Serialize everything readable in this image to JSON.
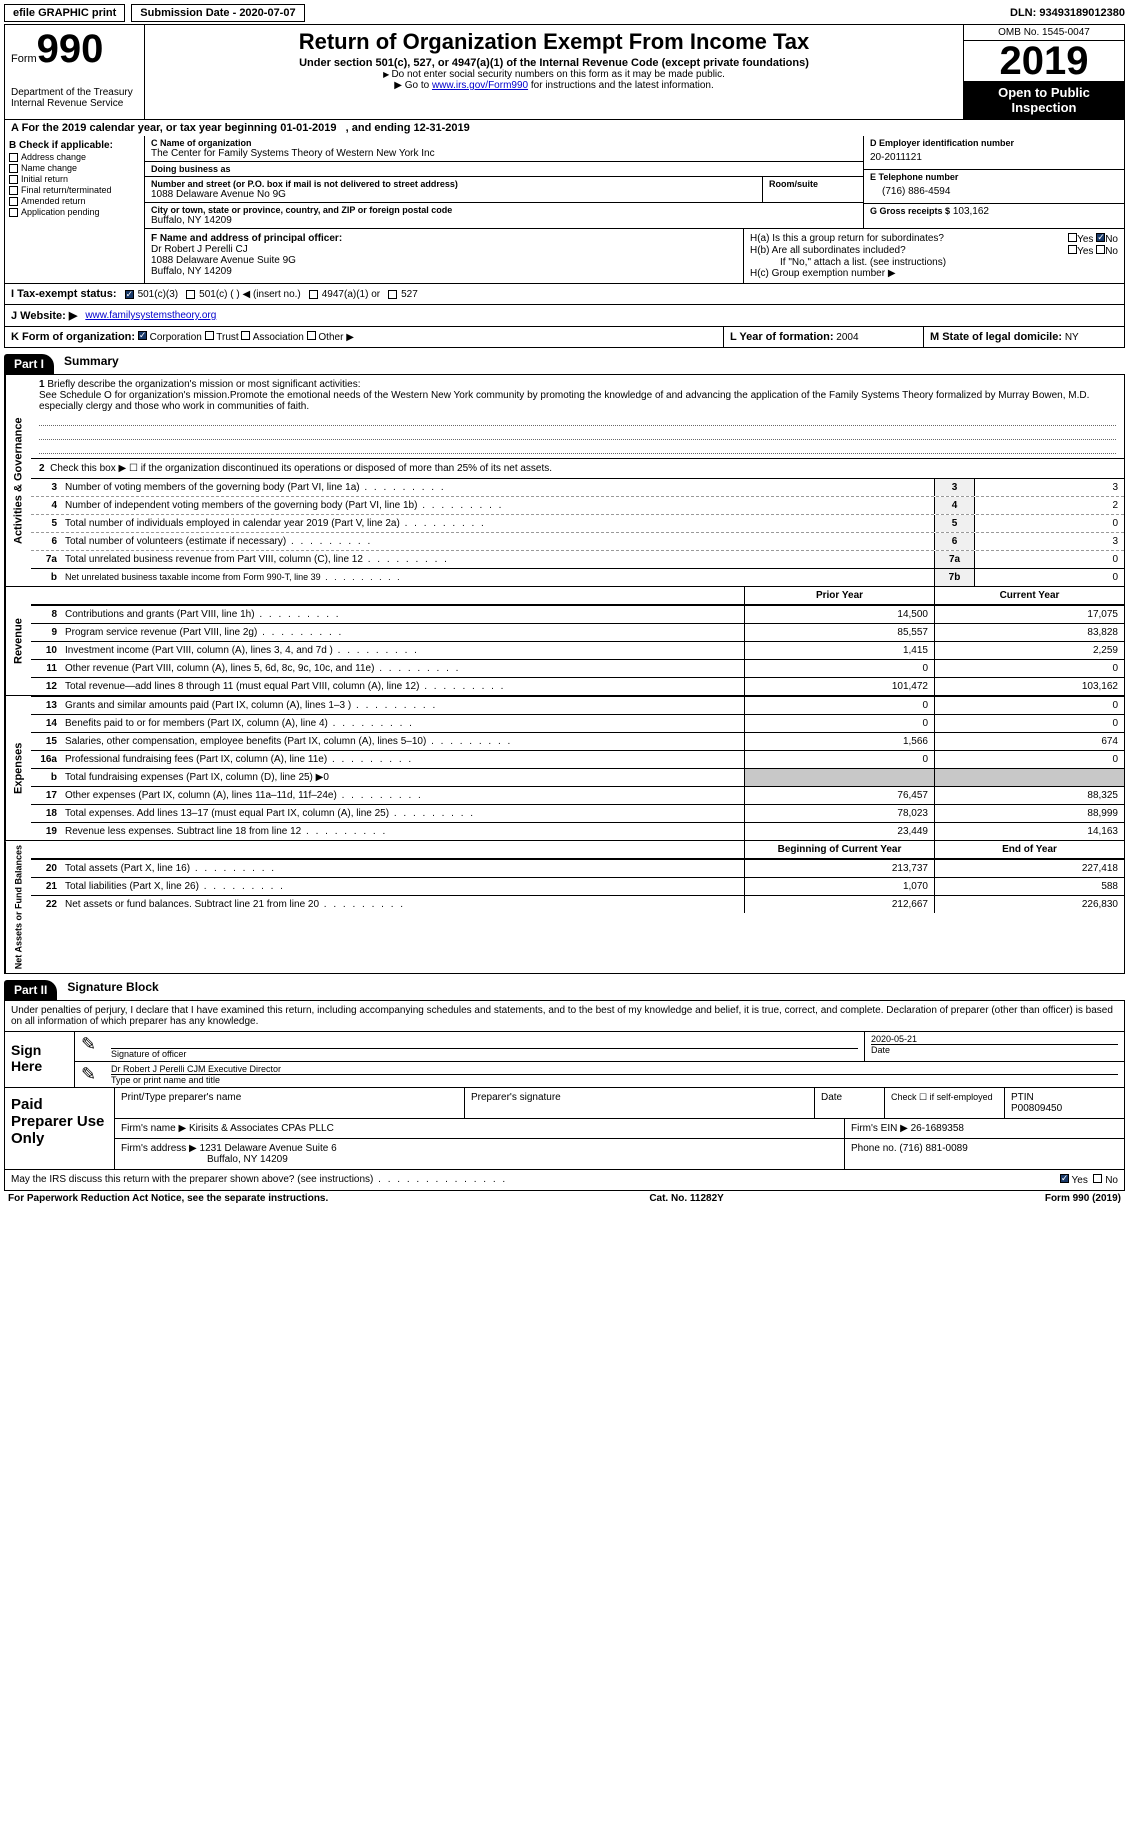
{
  "colors": {
    "black": "#000000",
    "white": "#ffffff",
    "gray_fill": "#c8c8c8",
    "link": "#0000cc",
    "check": "#1a3a6a"
  },
  "top": {
    "efile_label": "efile GRAPHIC print",
    "submission": "Submission Date - 2020-07-07",
    "dln": "DLN: 93493189012380"
  },
  "header": {
    "form_word": "Form",
    "form_num": "990",
    "dept": "Department of the Treasury",
    "irs": "Internal Revenue Service",
    "title": "Return of Organization Exempt From Income Tax",
    "sub1": "Under section 501(c), 527, or 4947(a)(1) of the Internal Revenue Code (except private foundations)",
    "sub2": "Do not enter social security numbers on this form as it may be made public.",
    "sub3_pre": "Go to ",
    "sub3_link": "www.irs.gov/Form990",
    "sub3_post": " for instructions and the latest information.",
    "omb": "OMB No. 1545-0047",
    "year": "2019",
    "open": "Open to Public Inspection"
  },
  "line_a": {
    "label": "For the 2019 calendar year, or tax year beginning 01-01-2019",
    "ending": ", and ending 12-31-2019"
  },
  "b": {
    "title": "B Check if applicable:",
    "opts": [
      "Address change",
      "Name change",
      "Initial return",
      "Final return/terminated",
      "Amended return",
      "Application pending"
    ]
  },
  "c": {
    "name_lbl": "C Name of organization",
    "name_val": "The Center for Family Systems Theory of Western New York Inc",
    "dba_lbl": "Doing business as",
    "dba_val": "",
    "addr_lbl": "Number and street (or P.O. box if mail is not delivered to street address)",
    "room_lbl": "Room/suite",
    "addr_val": "1088 Delaware Avenue No 9G",
    "city_lbl": "City or town, state or province, country, and ZIP or foreign postal code",
    "city_val": "Buffalo, NY  14209"
  },
  "d": {
    "lbl": "D Employer identification number",
    "val": "20-2011121"
  },
  "e": {
    "lbl": "E Telephone number",
    "val": "(716) 886-4594"
  },
  "g": {
    "lbl": "G Gross receipts $",
    "val": "103,162"
  },
  "f": {
    "lbl": "F  Name and address of principal officer:",
    "name": "Dr Robert J Perelli CJ",
    "addr1": "1088 Delaware Avenue Suite 9G",
    "addr2": "Buffalo, NY  14209"
  },
  "h": {
    "ha": "H(a)  Is this a group return for subordinates?",
    "hb": "H(b)  Are all subordinates included?",
    "hb_note": "If \"No,\" attach a list. (see instructions)",
    "hc": "H(c)  Group exemption number ▶",
    "yes": "Yes",
    "no": "No"
  },
  "i": {
    "lbl": "I    Tax-exempt status:",
    "opts": [
      "501(c)(3)",
      "501(c) (  ) ◀ (insert no.)",
      "4947(a)(1) or",
      "527"
    ]
  },
  "j": {
    "lbl": "J    Website: ▶",
    "val": "www.familysystemstheory.org"
  },
  "k": {
    "lbl": "K Form of organization:",
    "opts": [
      "Corporation",
      "Trust",
      "Association",
      "Other ▶"
    ]
  },
  "l": {
    "lbl": "L Year of formation:",
    "val": "2004"
  },
  "m": {
    "lbl": "M State of legal domicile:",
    "val": "NY"
  },
  "parts": {
    "p1": "Part I",
    "p1_title": "Summary",
    "p2": "Part II",
    "p2_title": "Signature Block"
  },
  "sidebars": {
    "act_gov": "Activities & Governance",
    "rev": "Revenue",
    "exp": "Expenses",
    "net": "Net Assets or Fund Balances"
  },
  "q1": {
    "lbl": "Briefly describe the organization's mission or most significant activities:",
    "val": "See Schedule O for organization's mission.Promote the emotional needs of the Western New York community by promoting the knowledge of and advancing the application of the Family Systems Theory formalized by Murray Bowen, M.D. especially clergy and those who work in communities of faith."
  },
  "q2": "Check this box ▶ ☐  if the organization discontinued its operations or disposed of more than 25% of its net assets.",
  "rows_gov": [
    {
      "n": "3",
      "t": "Number of voting members of the governing body (Part VI, line 1a)",
      "bn": "3",
      "bv": "3",
      "dash": false
    },
    {
      "n": "4",
      "t": "Number of independent voting members of the governing body (Part VI, line 1b)",
      "bn": "4",
      "bv": "2",
      "dash": true
    },
    {
      "n": "5",
      "t": "Total number of individuals employed in calendar year 2019 (Part V, line 2a)",
      "bn": "5",
      "bv": "0",
      "dash": true
    },
    {
      "n": "6",
      "t": "Total number of volunteers (estimate if necessary)",
      "bn": "6",
      "bv": "3",
      "dash": true
    },
    {
      "n": "7a",
      "t": "Total unrelated business revenue from Part VIII, column (C), line 12",
      "bn": "7a",
      "bv": "0",
      "dash": true
    },
    {
      "n": "b",
      "t": "Net unrelated business taxable income from Form 990-T, line 39",
      "bn": "7b",
      "bv": "0",
      "dash": false,
      "indent": true
    }
  ],
  "hdr_cols": {
    "prior": "Prior Year",
    "curr": "Current Year",
    "beg": "Beginning of Current Year",
    "end": "End of Year"
  },
  "rows_rev": [
    {
      "n": "8",
      "t": "Contributions and grants (Part VIII, line 1h)",
      "p": "14,500",
      "c": "17,075"
    },
    {
      "n": "9",
      "t": "Program service revenue (Part VIII, line 2g)",
      "p": "85,557",
      "c": "83,828"
    },
    {
      "n": "10",
      "t": "Investment income (Part VIII, column (A), lines 3, 4, and 7d )",
      "p": "1,415",
      "c": "2,259"
    },
    {
      "n": "11",
      "t": "Other revenue (Part VIII, column (A), lines 5, 6d, 8c, 9c, 10c, and 11e)",
      "p": "0",
      "c": "0"
    },
    {
      "n": "12",
      "t": "Total revenue—add lines 8 through 11 (must equal Part VIII, column (A), line 12)",
      "p": "101,472",
      "c": "103,162"
    }
  ],
  "rows_exp": [
    {
      "n": "13",
      "t": "Grants and similar amounts paid (Part IX, column (A), lines 1–3 )",
      "p": "0",
      "c": "0"
    },
    {
      "n": "14",
      "t": "Benefits paid to or for members (Part IX, column (A), line 4)",
      "p": "0",
      "c": "0"
    },
    {
      "n": "15",
      "t": "Salaries, other compensation, employee benefits (Part IX, column (A), lines 5–10)",
      "p": "1,566",
      "c": "674"
    },
    {
      "n": "16a",
      "t": "Professional fundraising fees (Part IX, column (A), line 11e)",
      "p": "0",
      "c": "0"
    },
    {
      "n": "b",
      "t": "Total fundraising expenses (Part IX, column (D), line 25) ▶0",
      "p": "",
      "c": "",
      "gray": true,
      "sub": true
    },
    {
      "n": "17",
      "t": "Other expenses (Part IX, column (A), lines 11a–11d, 11f–24e)",
      "p": "76,457",
      "c": "88,325"
    },
    {
      "n": "18",
      "t": "Total expenses. Add lines 13–17 (must equal Part IX, column (A), line 25)",
      "p": "78,023",
      "c": "88,999"
    },
    {
      "n": "19",
      "t": "Revenue less expenses. Subtract line 18 from line 12",
      "p": "23,449",
      "c": "14,163"
    }
  ],
  "rows_net": [
    {
      "n": "20",
      "t": "Total assets (Part X, line 16)",
      "p": "213,737",
      "c": "227,418"
    },
    {
      "n": "21",
      "t": "Total liabilities (Part X, line 26)",
      "p": "1,070",
      "c": "588"
    },
    {
      "n": "22",
      "t": "Net assets or fund balances. Subtract line 21 from line 20",
      "p": "212,667",
      "c": "226,830"
    }
  ],
  "sig": {
    "declaration": "Under penalties of perjury, I declare that I have examined this return, including accompanying schedules and statements, and to the best of my knowledge and belief, it is true, correct, and complete. Declaration of preparer (other than officer) is based on all information of which preparer has any knowledge.",
    "sign_here": "Sign Here",
    "sig_officer_lbl": "Signature of officer",
    "date_lbl": "Date",
    "date_val": "2020-05-21",
    "name_title": "Dr Robert J Perelli CJM Executive Director",
    "name_title_lbl": "Type or print name and title"
  },
  "prep": {
    "title": "Paid Preparer Use Only",
    "h1": "Print/Type preparer's name",
    "h2": "Preparer's signature",
    "h3": "Date",
    "h4_a": "Check ☐ if self-employed",
    "h4_b": "PTIN",
    "ptin": "P00809450",
    "firm_lbl": "Firm's name    ▶",
    "firm_val": "Kirisits & Associates CPAs PLLC",
    "ein_lbl": "Firm's EIN ▶",
    "ein_val": "26-1689358",
    "addr_lbl": "Firm's address ▶",
    "addr_val1": "1231 Delaware Avenue Suite 6",
    "addr_val2": "Buffalo, NY  14209",
    "phone_lbl": "Phone no.",
    "phone_val": "(716) 881-0089"
  },
  "footer": {
    "discuss": "May the IRS discuss this return with the preparer shown above? (see instructions)",
    "yes": "Yes",
    "no": "No",
    "paperwork": "For Paperwork Reduction Act Notice, see the separate instructions.",
    "cat": "Cat. No. 11282Y",
    "form": "Form 990 (2019)"
  }
}
